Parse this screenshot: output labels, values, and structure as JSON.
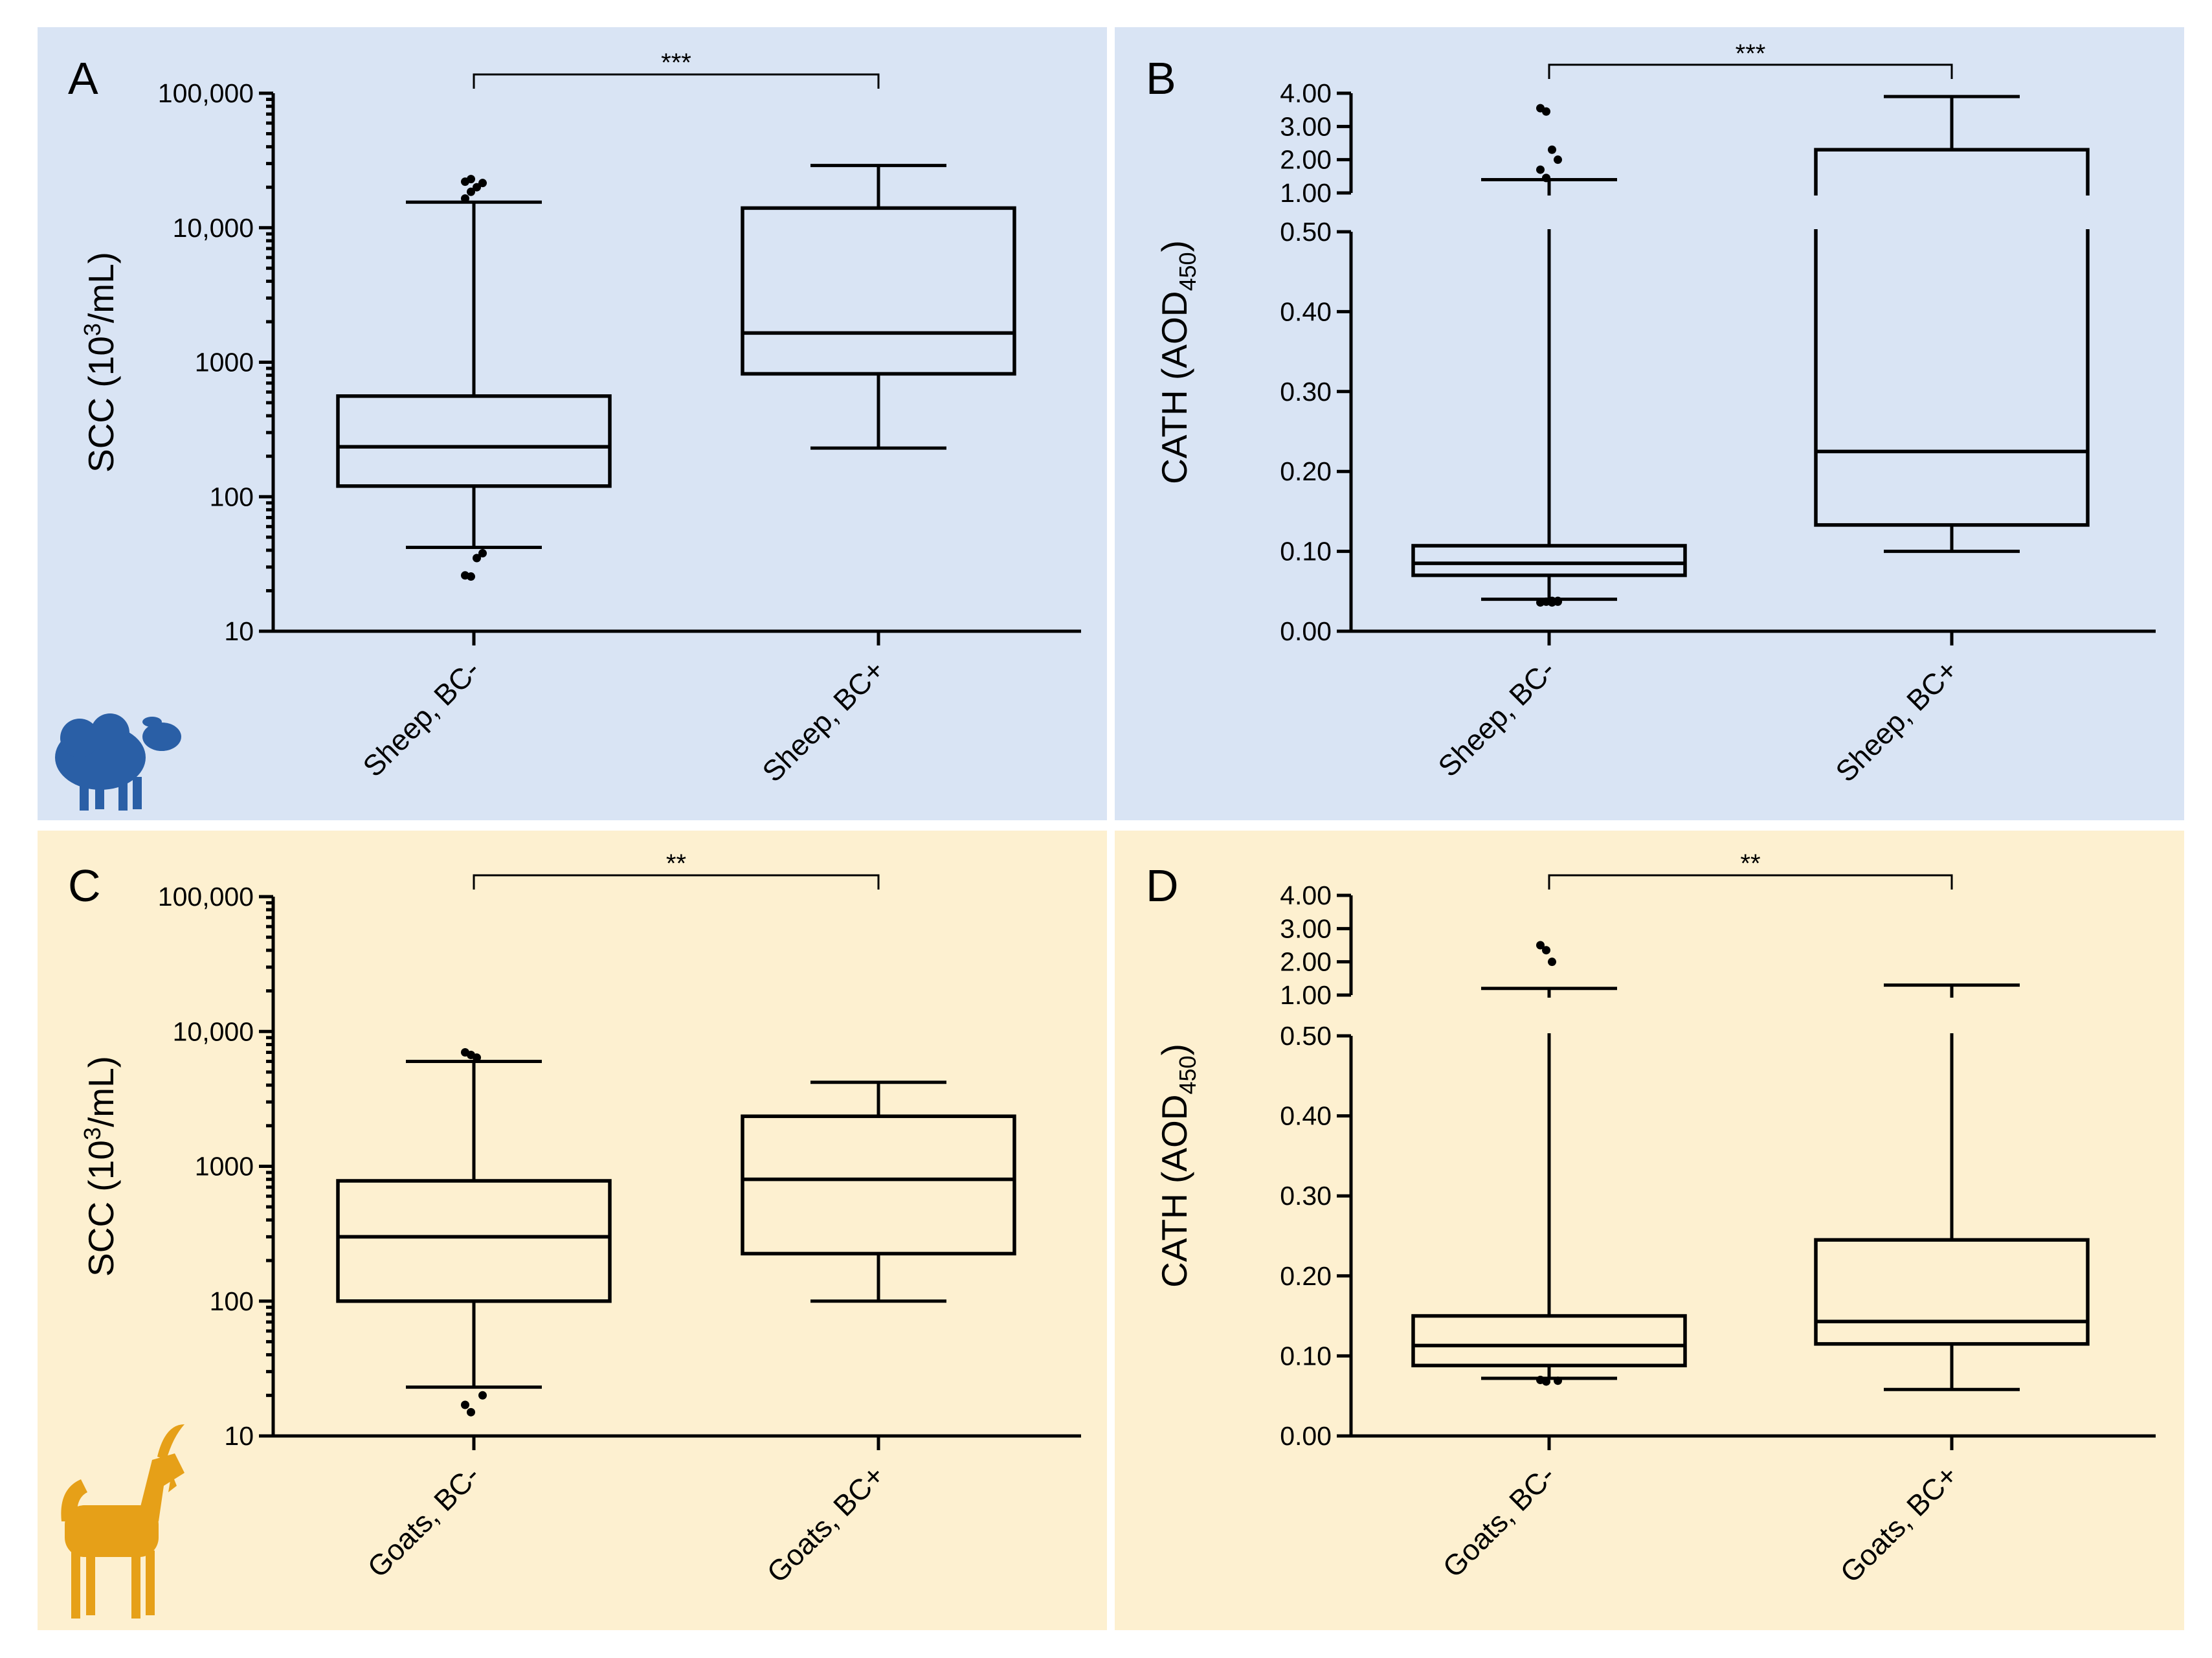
{
  "colors": {
    "sheep_panel": "#d9e4f4",
    "goat_panel": "#fdf0d0",
    "sheep_icon": "#2a5fa6",
    "goat_icon": "#e6a018"
  },
  "icons": {
    "sheep": "sheep-icon",
    "goat": "goat-icon"
  },
  "chart_data": [
    {
      "panel": "A",
      "type": "box",
      "scale": "log",
      "ylabel": "SCC (10",
      "ylabel_sup": "3",
      "ylabel_tail": "/mL)",
      "ylim": [
        10,
        100000
      ],
      "yticks": [
        10,
        100,
        1000,
        10000,
        100000
      ],
      "ytick_labels": [
        "10",
        "100",
        "1000",
        "10,000",
        "100,000"
      ],
      "categories": [
        "Sheep, BC-",
        "Sheep, BC+"
      ],
      "series": [
        {
          "name": "Sheep, BC-",
          "whisker_low": 42,
          "q1": 120,
          "median": 235,
          "q3": 560,
          "whisker_high": 15500,
          "outliers": [
            16500,
            18500,
            20000,
            21500,
            22000,
            23000,
            35,
            38,
            26,
            25.5
          ]
        },
        {
          "name": "Sheep, BC+",
          "whisker_low": 230,
          "q1": 820,
          "median": 1650,
          "q3": 14000,
          "whisker_high": 29000,
          "outliers": []
        }
      ],
      "significance": "***"
    },
    {
      "panel": "B",
      "type": "box",
      "scale": "broken",
      "ylabel": "CATH (AOD",
      "ylabel_sub": "450",
      "ylabel_tail": ")",
      "ylim_lower": [
        0,
        0.5
      ],
      "ylim_upper": [
        1,
        4
      ],
      "yticks_lower": [
        0,
        0.1,
        0.2,
        0.3,
        0.4,
        0.5
      ],
      "ytick_labels_lower": [
        "0.00",
        "0.10",
        "0.20",
        "0.30",
        "0.40",
        "0.50"
      ],
      "yticks_upper": [
        1,
        2,
        3,
        4
      ],
      "ytick_labels_upper": [
        "1.00",
        "2.00",
        "3.00",
        "4.00"
      ],
      "categories": [
        "Sheep, BC-",
        "Sheep, BC+"
      ],
      "series": [
        {
          "name": "Sheep, BC-",
          "whisker_low": 0.04,
          "q1": 0.07,
          "median": 0.085,
          "q3": 0.107,
          "whisker_high": 1.4,
          "outliers": [
            3.55,
            3.45,
            2.3,
            2.0,
            1.7,
            1.45,
            0.038,
            0.037,
            0.036,
            0.037,
            0.036,
            0.038
          ]
        },
        {
          "name": "Sheep, BC+",
          "whisker_low": 0.1,
          "q1": 0.133,
          "median": 0.225,
          "q3": 2.3,
          "whisker_high": 3.9,
          "outliers": []
        }
      ],
      "significance": "***"
    },
    {
      "panel": "C",
      "type": "box",
      "scale": "log",
      "ylabel": "SCC (10",
      "ylabel_sup": "3",
      "ylabel_tail": "/mL)",
      "ylim": [
        10,
        100000
      ],
      "yticks": [
        10,
        100,
        1000,
        10000,
        100000
      ],
      "ytick_labels": [
        "10",
        "100",
        "1000",
        "10,000",
        "100,000"
      ],
      "categories": [
        "Goats, BC-",
        "Goats, BC+"
      ],
      "series": [
        {
          "name": "Goats, BC-",
          "whisker_low": 23,
          "q1": 100,
          "median": 300,
          "q3": 780,
          "whisker_high": 6000,
          "outliers": [
            7000,
            6700,
            6400,
            20,
            17,
            15
          ]
        },
        {
          "name": "Goats, BC+",
          "whisker_low": 100,
          "q1": 225,
          "median": 800,
          "q3": 2350,
          "whisker_high": 4200,
          "outliers": []
        }
      ],
      "significance": "**"
    },
    {
      "panel": "D",
      "type": "box",
      "scale": "broken",
      "ylabel": "CATH (AOD",
      "ylabel_sub": "450",
      "ylabel_tail": ")",
      "ylim_lower": [
        0,
        0.5
      ],
      "ylim_upper": [
        1,
        4
      ],
      "yticks_lower": [
        0,
        0.1,
        0.2,
        0.3,
        0.4,
        0.5
      ],
      "ytick_labels_lower": [
        "0.00",
        "0.10",
        "0.20",
        "0.30",
        "0.40",
        "0.50"
      ],
      "yticks_upper": [
        1,
        2,
        3,
        4
      ],
      "ytick_labels_upper": [
        "1.00",
        "2.00",
        "3.00",
        "4.00"
      ],
      "categories": [
        "Goats, BC-",
        "Goats, BC+"
      ],
      "series": [
        {
          "name": "Goats, BC-",
          "whisker_low": 0.072,
          "q1": 0.088,
          "median": 0.113,
          "q3": 0.15,
          "whisker_high": 1.2,
          "outliers": [
            2.5,
            2.35,
            2.0,
            0.069,
            0.07,
            0.068
          ]
        },
        {
          "name": "Goats, BC+",
          "whisker_low": 0.058,
          "q1": 0.115,
          "median": 0.143,
          "q3": 0.245,
          "whisker_high": 1.3,
          "outliers": []
        }
      ],
      "significance": "**"
    }
  ]
}
